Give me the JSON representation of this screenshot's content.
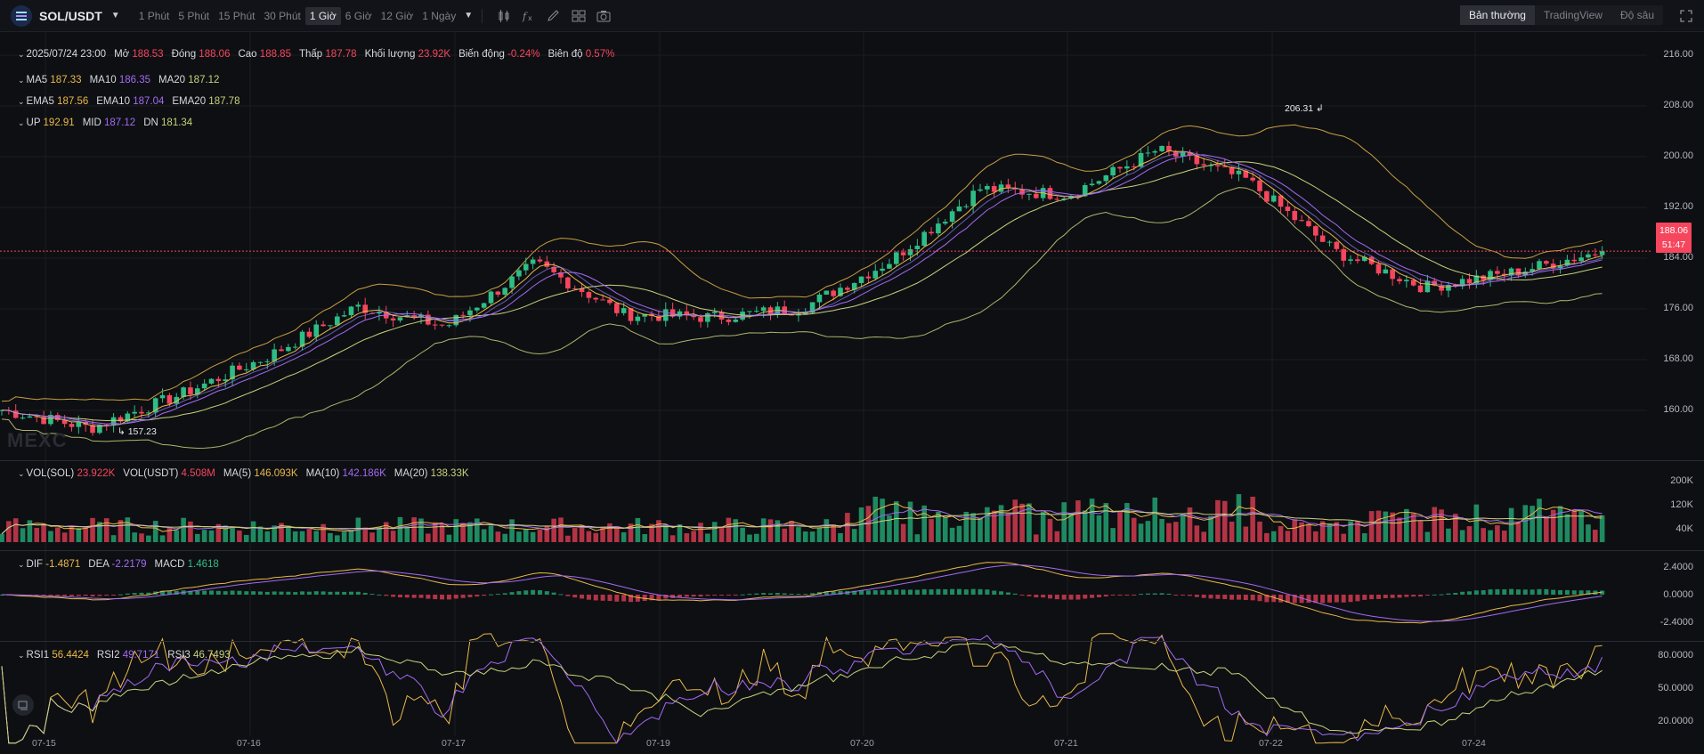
{
  "toolbar": {
    "pair": "SOL/USDT",
    "intervals": [
      "1 Phút",
      "5 Phút",
      "15 Phút",
      "30 Phút",
      "1 Giờ",
      "6 Giờ",
      "12 Giờ",
      "1 Ngày"
    ],
    "active_interval": "1 Giờ",
    "tools": [
      "candle-type-icon",
      "indicator-icon",
      "draw-pen-icon",
      "layout-grid-icon",
      "camera-icon"
    ],
    "views": [
      "Bản thường",
      "TradingView",
      "Độ sâu"
    ],
    "active_view": "Bản thường"
  },
  "ohlc": {
    "date": "2025/07/24 23:00",
    "open_label": "Mở",
    "open": "188.53",
    "close_label": "Đóng",
    "close": "188.06",
    "high_label": "Cao",
    "high": "188.85",
    "low_label": "Thấp",
    "low": "187.78",
    "vol_label": "Khối lượng",
    "vol": "23.92K",
    "change_label": "Biến động",
    "change": "-0.24%",
    "amp_label": "Biên độ",
    "amp": "0.57%"
  },
  "ma": {
    "ma5_label": "MA5",
    "ma5": "187.33",
    "ma10_label": "MA10",
    "ma10": "186.35",
    "ma20_label": "MA20",
    "ma20": "187.12"
  },
  "ema": {
    "ema5_label": "EMA5",
    "ema5": "187.56",
    "ema10_label": "EMA10",
    "ema10": "187.04",
    "ema20_label": "EMA20",
    "ema20": "187.78"
  },
  "boll": {
    "up_label": "UP",
    "up": "192.91",
    "mid_label": "MID",
    "mid": "187.12",
    "dn_label": "DN",
    "dn": "181.34"
  },
  "volume": {
    "sol_label": "VOL(SOL)",
    "sol": "23.922K",
    "usdt_label": "VOL(USDT)",
    "usdt": "4.508M",
    "ma5_label": "MA(5)",
    "ma5": "146.093K",
    "ma10_label": "MA(10)",
    "ma10": "142.186K",
    "ma20_label": "MA(20)",
    "ma20": "138.33K"
  },
  "macd": {
    "dif_label": "DIF",
    "dif": "-1.4871",
    "dea_label": "DEA",
    "dea": "-2.2179",
    "macd_label": "MACD",
    "macd": "1.4618"
  },
  "rsi": {
    "rsi1_label": "RSI1",
    "rsi1": "56.4424",
    "rsi2_label": "RSI2",
    "rsi2": "49.7171",
    "rsi3_label": "RSI3",
    "rsi3": "46.7493"
  },
  "price_axis": [
    "216.00",
    "208.00",
    "200.00",
    "192.00",
    "184.00",
    "176.00",
    "168.00",
    "160.00"
  ],
  "volume_axis": [
    "200K",
    "120K",
    "40K"
  ],
  "macd_axis": [
    "2.4000",
    "0.0000",
    "-2.4000"
  ],
  "rsi_axis": [
    "80.0000",
    "50.0000",
    "20.0000"
  ],
  "dates": [
    "07-15",
    "07-16",
    "07-17",
    "07-19",
    "07-20",
    "07-21",
    "07-22",
    "07-24"
  ],
  "current_price": "188.06",
  "countdown": "51:47",
  "high_marker": "206.31",
  "low_marker": "157.23",
  "watermark": "MEXC",
  "colors": {
    "up": "#2ebd85",
    "down": "#f6465d",
    "ma5": "#e9b949",
    "ma10": "#a26bf2",
    "ma20": "#c9d27a",
    "background": "#0e0f13"
  },
  "chart_data": {
    "type": "candlestick",
    "interval": "1h",
    "x": [
      "07-15",
      "07-16",
      "07-17",
      "07-19",
      "07-20",
      "07-21",
      "07-22",
      "07-24"
    ],
    "anchor_prices": [
      161.5,
      158.5,
      164.0,
      170.5,
      178.8,
      175.5,
      186.0,
      177.5,
      177.0,
      178.5,
      186.5,
      198.5,
      197.5,
      205.0,
      200.0,
      188.0,
      182.0,
      184.5,
      188.06
    ],
    "ylim": [
      154,
      218
    ],
    "overlays": [
      "MA5",
      "MA10",
      "MA20",
      "BOLL"
    ],
    "high": 206.31,
    "low": 157.23,
    "last": 188.06
  }
}
